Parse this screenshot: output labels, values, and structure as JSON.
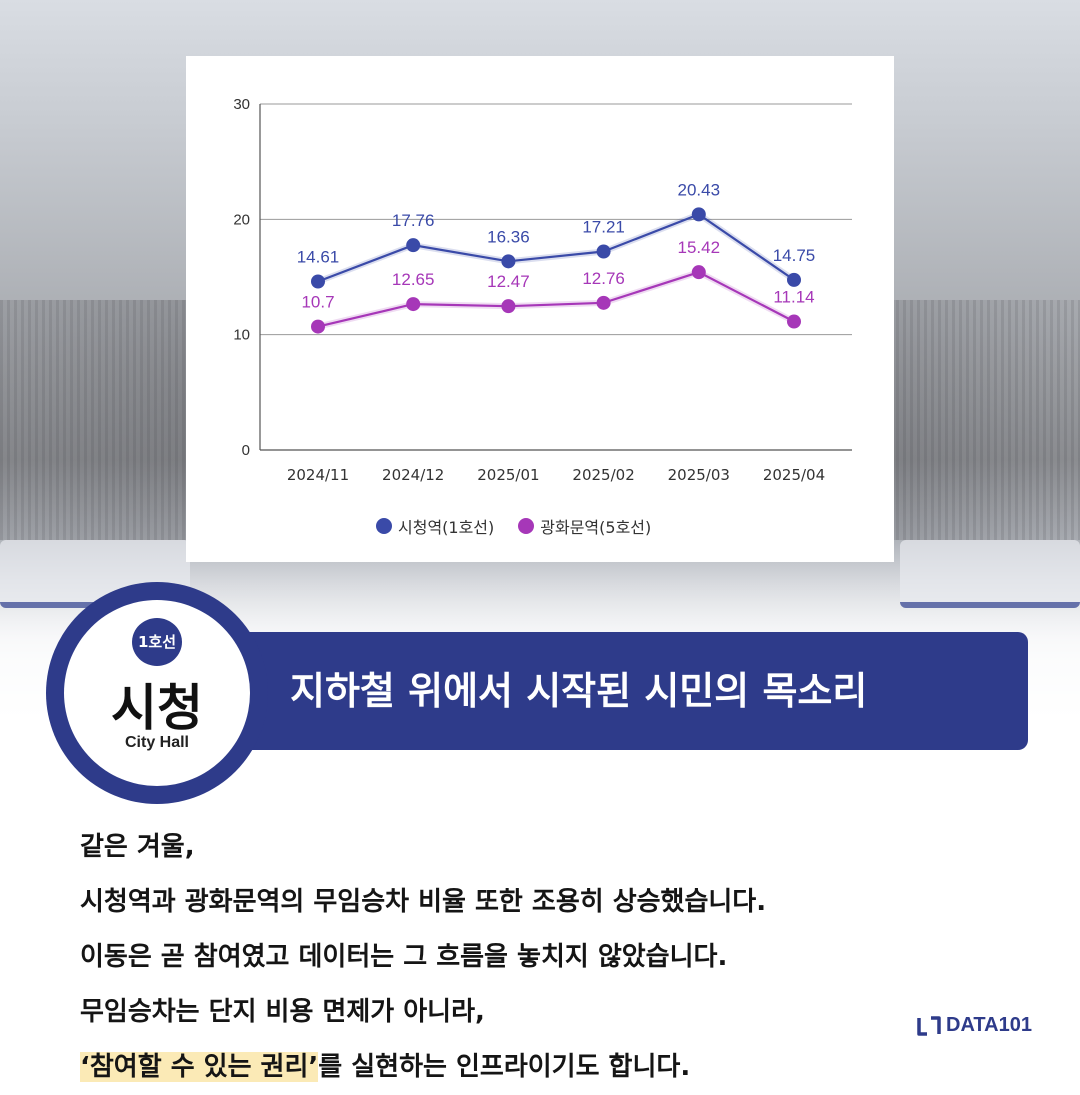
{
  "banner": {
    "title": "지하철 위에서 시작된 시민의 목소리"
  },
  "badge": {
    "line": "1호선",
    "name": "시청",
    "english": "City Hall"
  },
  "body": {
    "lines": [
      "같은 겨울,",
      "시청역과 광화문역의 무임승차 비율 또한 조용히 상승했습니다.",
      "이동은 곧 참여였고 데이터는 그 흐름을 놓치지 않았습니다.",
      "무임승차는 단지 비용 면제가 아니라,"
    ],
    "last_line_highlight": "‘참여할 수 있는 권리’",
    "last_line_rest": "를 실현하는 인프라이기도 합니다."
  },
  "logo": {
    "text": "DATA101",
    "icon": "data101-logo-icon"
  },
  "colors": {
    "navy": "#2e3b8a",
    "series1": "#3a4aa8",
    "series2": "#a637b8",
    "highlight": "#fbeab6"
  },
  "chart_data": {
    "type": "line",
    "categories": [
      "2024/11",
      "2024/12",
      "2025/01",
      "2025/02",
      "2025/03",
      "2025/04"
    ],
    "series": [
      {
        "name": "시청역(1호선)",
        "values": [
          14.61,
          17.76,
          16.36,
          17.21,
          20.43,
          14.75
        ],
        "labels": [
          "14.61",
          "17.76",
          "16.36",
          "17.21",
          "20.43",
          "14.75"
        ],
        "color": "#3a4aa8"
      },
      {
        "name": "광화문역(5호선)",
        "values": [
          10.7,
          12.65,
          12.47,
          12.76,
          15.42,
          11.14
        ],
        "labels": [
          "10.7",
          "12.65",
          "12.47",
          "12.76",
          "15.42",
          "11.14"
        ],
        "color": "#a637b8"
      }
    ],
    "ylim": [
      0,
      30
    ],
    "yticks": [
      "0",
      "10",
      "20",
      "30"
    ],
    "grid": true,
    "legend": "bottom"
  }
}
